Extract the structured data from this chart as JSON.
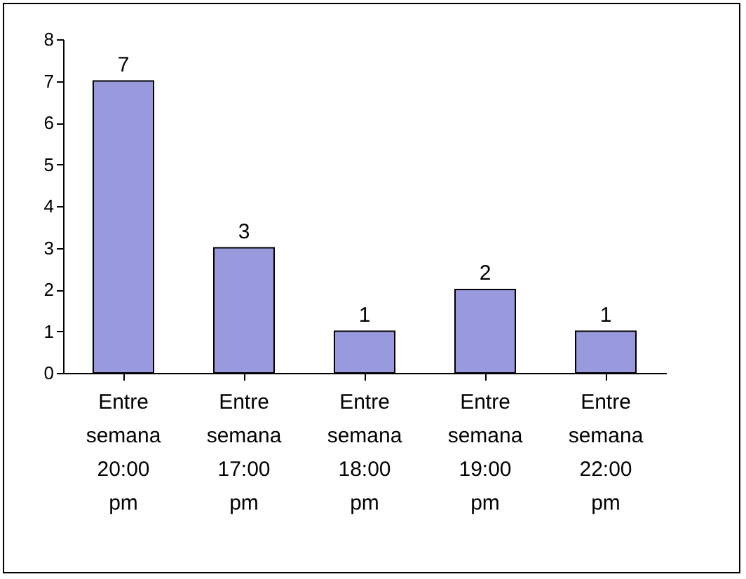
{
  "chart_data": {
    "type": "bar",
    "categories": [
      "Entre semana 20:00 pm",
      "Entre semana 17:00 pm",
      "Entre semana 18:00 pm",
      "Entre semana 19:00 pm",
      "Entre semana 22:00 pm"
    ],
    "values": [
      7,
      3,
      1,
      2,
      1
    ],
    "color": "#9999dd",
    "ylim": [
      0,
      8
    ],
    "yticks": [
      0,
      1,
      2,
      3,
      4,
      5,
      6,
      7,
      8
    ],
    "grid": false,
    "data_labels": true
  }
}
